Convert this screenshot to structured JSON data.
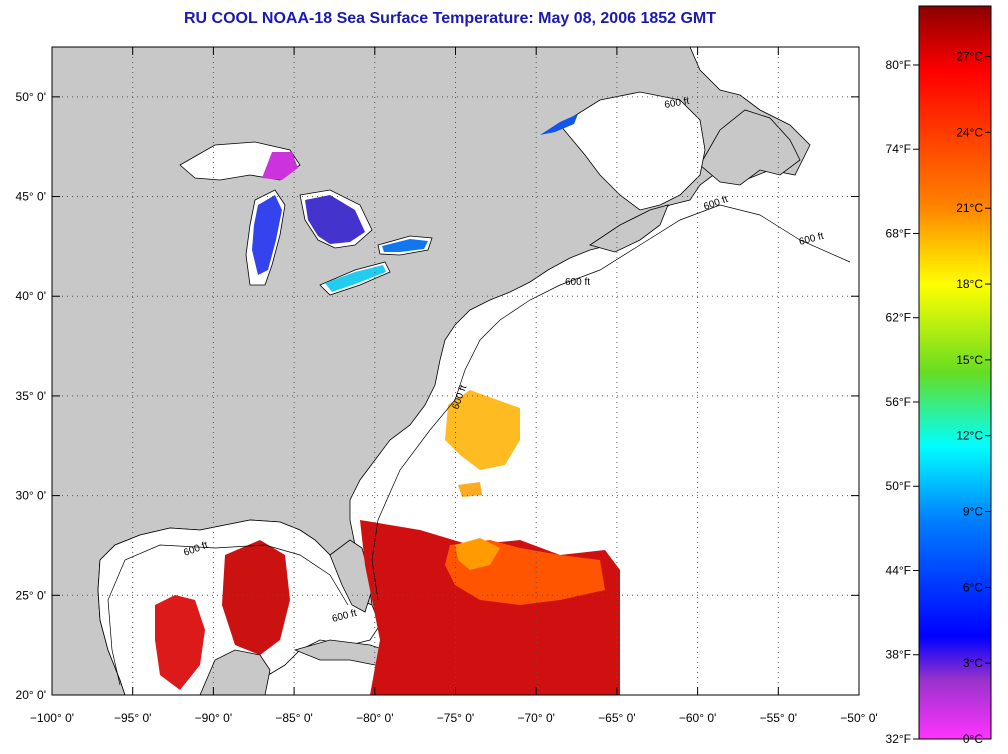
{
  "title": "RU COOL  NOAA-18  Sea Surface Temperature:  May 08, 2006 1852 GMT",
  "map": {
    "lon_range": [
      -100,
      -50
    ],
    "lat_range": [
      20,
      52.5
    ],
    "lon_ticks": [
      {
        "value": -100,
        "label": "−100° 0'"
      },
      {
        "value": -95,
        "label": "−95° 0'"
      },
      {
        "value": -90,
        "label": "−90° 0'"
      },
      {
        "value": -85,
        "label": "−85° 0'"
      },
      {
        "value": -80,
        "label": "−80° 0'"
      },
      {
        "value": -75,
        "label": "−75° 0'"
      },
      {
        "value": -70,
        "label": "−70° 0'"
      },
      {
        "value": -65,
        "label": "−65° 0'"
      },
      {
        "value": -60,
        "label": "−60° 0'"
      },
      {
        "value": -55,
        "label": "−55° 0'"
      },
      {
        "value": -50,
        "label": "−50° 0'"
      }
    ],
    "lat_ticks": [
      {
        "value": 20,
        "label": "20° 0'"
      },
      {
        "value": 25,
        "label": "25° 0'"
      },
      {
        "value": 30,
        "label": "30° 0'"
      },
      {
        "value": 35,
        "label": "35° 0'"
      },
      {
        "value": 40,
        "label": "40° 0'"
      },
      {
        "value": 45,
        "label": "45° 0'"
      },
      {
        "value": 50,
        "label": "50° 0'"
      }
    ],
    "contour_label": "600 ft",
    "colors": {
      "land": "#c8c8c8",
      "ocean": "#ffffff",
      "coast": "#000000",
      "grid": "#555555"
    }
  },
  "colorbar": {
    "celsius_min": 0,
    "celsius_max": 29,
    "fahrenheit_labels": [
      {
        "value": 80,
        "label": "80°F"
      },
      {
        "value": 74,
        "label": "74°F"
      },
      {
        "value": 68,
        "label": "68°F"
      },
      {
        "value": 62,
        "label": "62°F"
      },
      {
        "value": 56,
        "label": "56°F"
      },
      {
        "value": 50,
        "label": "50°F"
      },
      {
        "value": 44,
        "label": "44°F"
      },
      {
        "value": 38,
        "label": "38°F"
      },
      {
        "value": 32,
        "label": "32°F"
      }
    ],
    "celsius_labels": [
      {
        "value": 27,
        "label": "27°C"
      },
      {
        "value": 24,
        "label": "24°C"
      },
      {
        "value": 21,
        "label": "21°C"
      },
      {
        "value": 18,
        "label": "18°C"
      },
      {
        "value": 15,
        "label": "15°C"
      },
      {
        "value": 12,
        "label": "12°C"
      },
      {
        "value": 9,
        "label": "9°C"
      },
      {
        "value": 6,
        "label": "6°C"
      },
      {
        "value": 3,
        "label": "3°C"
      },
      {
        "value": 0,
        "label": "0°C"
      }
    ],
    "gradient_stops": [
      "#8b0000",
      "#ff0000",
      "#ff8000",
      "#ffff00",
      "#66dd22",
      "#00ffff",
      "#0080ff",
      "#0000ff",
      "#9933cc",
      "#ff33ff"
    ]
  }
}
